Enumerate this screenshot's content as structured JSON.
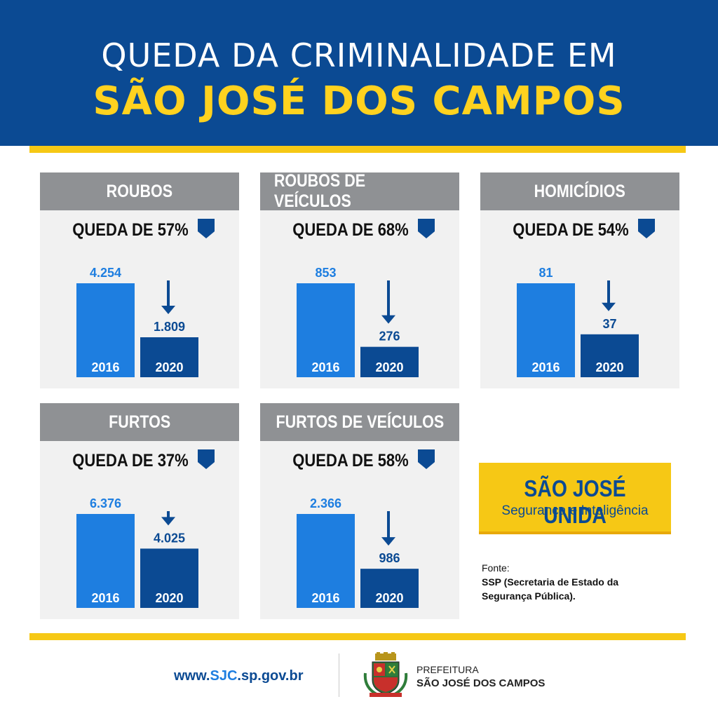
{
  "header": {
    "line1": "QUEDA DA CRIMINALIDADE EM",
    "line2": "SÃO JOSÉ DOS CAMPOS"
  },
  "colors": {
    "navy": "#0b4a93",
    "yellow": "#f6c815",
    "bar_2016": "#1e7ee0",
    "bar_2020": "#0b4a93",
    "card_header": "#8f9194",
    "card_bg": "#f1f1f1"
  },
  "chart_data": [
    {
      "type": "bar",
      "title": "ROUBOS",
      "subtitle": "QUEDA DE 57%",
      "categories": [
        "2016",
        "2020"
      ],
      "values": [
        4254,
        1809
      ],
      "labels": [
        "4.254",
        "1.809"
      ]
    },
    {
      "type": "bar",
      "title": "ROUBOS DE VEÍCULOS",
      "subtitle": "QUEDA DE 68%",
      "categories": [
        "2016",
        "2020"
      ],
      "values": [
        853,
        276
      ],
      "labels": [
        "853",
        "276"
      ]
    },
    {
      "type": "bar",
      "title": "HOMICÍDIOS",
      "subtitle": "QUEDA DE 54%",
      "categories": [
        "2016",
        "2020"
      ],
      "values": [
        81,
        37
      ],
      "labels": [
        "81",
        "37"
      ]
    },
    {
      "type": "bar",
      "title": "FURTOS",
      "subtitle": "QUEDA DE 37%",
      "categories": [
        "2016",
        "2020"
      ],
      "values": [
        6376,
        4025
      ],
      "labels": [
        "6.376",
        "4.025"
      ]
    },
    {
      "type": "bar",
      "title": "FURTOS DE VEÍCULOS",
      "subtitle": "QUEDA DE 58%",
      "categories": [
        "2016",
        "2020"
      ],
      "values": [
        2366,
        986
      ],
      "labels": [
        "2.366",
        "986"
      ]
    }
  ],
  "badge": {
    "title": "SÃO JOSÉ UNIDA",
    "subtitle": "Segurança e Inteligência"
  },
  "source": {
    "label": "Fonte:",
    "text": "SSP (Secretaria de Estado da Segurança Pública)."
  },
  "footer": {
    "site_prefix": "www.",
    "site_highlight": "SJC",
    "site_suffix": ".sp.gov.br",
    "pref_line1": "PREFEITURA",
    "pref_line2": "SÃO JOSÉ DOS CAMPOS"
  }
}
